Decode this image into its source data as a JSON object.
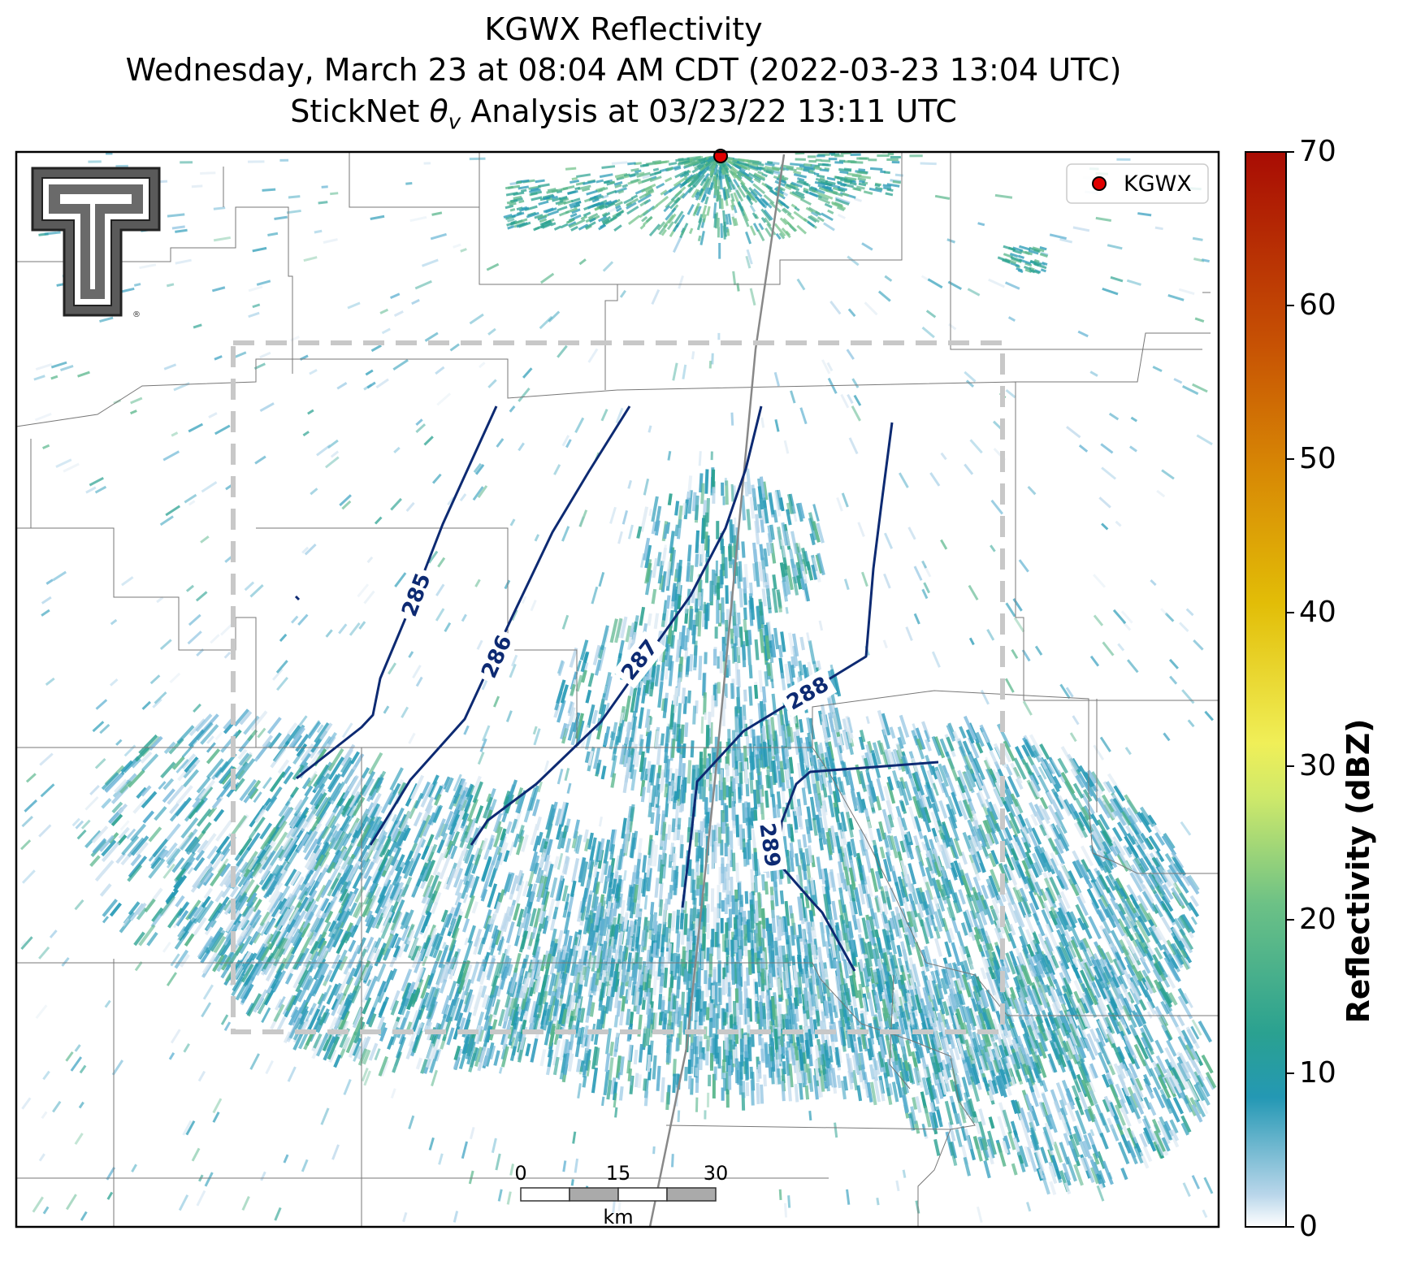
{
  "title": {
    "line1": "KGWX Reflectivity",
    "line2": "Wednesday, March 23 at 08:04 AM CDT (2022-03-23 13:04 UTC)",
    "line3_pre": "StickNet ",
    "line3_theta": "θ",
    "line3_sub": "v",
    "line3_post": " Analysis at 03/23/22 13:11 UTC"
  },
  "legend": {
    "radar_label": "KGWX",
    "marker_color": "#e00000"
  },
  "colorbar": {
    "title": "Reflectivity (dBZ)",
    "ticks": [
      "0",
      "10",
      "20",
      "30",
      "40",
      "50",
      "60",
      "70"
    ],
    "min": 0,
    "max": 70,
    "colors": [
      "#ffffff",
      "#b9d6ea",
      "#2498b4",
      "#2aa190",
      "#6cc186",
      "#cfe96a",
      "#f0ef58",
      "#e2bd07",
      "#d88a05",
      "#c75204",
      "#a80c04"
    ]
  },
  "contours": {
    "color": "#0d2a72",
    "labels": [
      "285",
      "286",
      "287",
      "288",
      "289"
    ]
  },
  "scale_bar": {
    "ticks": [
      "0",
      "15",
      "30"
    ],
    "unit": "km"
  },
  "logo": {
    "name": "Texas Tech double-T logo",
    "registered": "®"
  }
}
